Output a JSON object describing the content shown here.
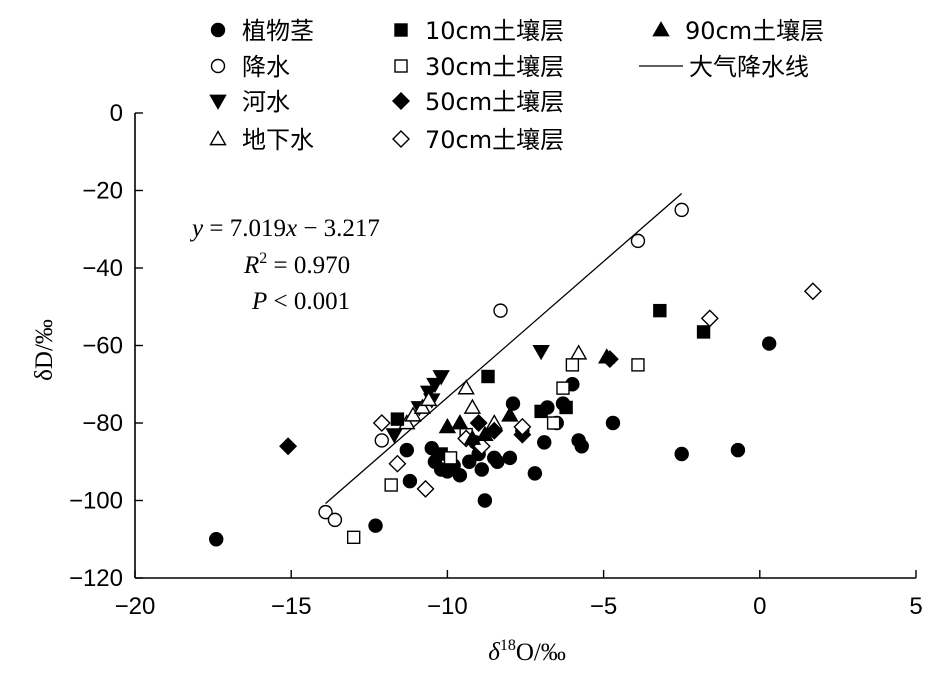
{
  "chart_data": {
    "type": "scatter",
    "xlabel": {
      "pre": "δ",
      "sup": "18",
      "post": "O/‰"
    },
    "ylabel": "δD/‰",
    "xlim": [
      -20,
      5
    ],
    "ylim": [
      -120,
      0
    ],
    "xticks": [
      -20,
      -15,
      -10,
      -5,
      0,
      5
    ],
    "yticks": [
      0,
      -20,
      -40,
      -60,
      -80,
      -100,
      -120
    ],
    "grid": false,
    "legend_position": "top",
    "annotation": {
      "equation": {
        "y": "y",
        "eq": " = 7.019",
        "x": "x",
        "rest": " − 3.217"
      },
      "r2": {
        "r": "R",
        "sup": "2",
        "rest": " = 0.970"
      },
      "p": {
        "p": "P",
        "rest": " < 0.001"
      }
    },
    "line": {
      "name": "大气降水线",
      "slope": 7.019,
      "intercept": -3.217,
      "x_range": [
        -13.9,
        -2.5
      ]
    },
    "series": [
      {
        "name": "植物茎",
        "marker": "circle-filled",
        "points": [
          [
            -17.4,
            -110
          ],
          [
            -12.3,
            -106.5
          ],
          [
            -11.2,
            -95
          ],
          [
            -11.3,
            -87
          ],
          [
            -10.5,
            -86.5
          ],
          [
            -10.4,
            -90
          ],
          [
            -10.2,
            -92
          ],
          [
            -10.0,
            -92.5
          ],
          [
            -9.8,
            -91
          ],
          [
            -9.6,
            -93.5
          ],
          [
            -9.3,
            -90
          ],
          [
            -9.1,
            -85
          ],
          [
            -9.0,
            -88
          ],
          [
            -8.9,
            -92
          ],
          [
            -8.8,
            -100
          ],
          [
            -8.5,
            -89
          ],
          [
            -8.4,
            -90
          ],
          [
            -8.0,
            -89
          ],
          [
            -7.9,
            -75
          ],
          [
            -7.6,
            -82
          ],
          [
            -7.2,
            -93
          ],
          [
            -6.9,
            -85
          ],
          [
            -6.8,
            -76
          ],
          [
            -6.5,
            -80
          ],
          [
            -6.3,
            -75
          ],
          [
            -6.0,
            -70
          ],
          [
            -5.8,
            -84.5
          ],
          [
            -5.7,
            -86
          ],
          [
            -4.7,
            -80
          ],
          [
            -2.5,
            -88
          ],
          [
            -0.7,
            -87
          ],
          [
            0.3,
            -59.5
          ]
        ]
      },
      {
        "name": "降水",
        "marker": "circle-open",
        "points": [
          [
            -13.9,
            -103
          ],
          [
            -13.6,
            -105
          ],
          [
            -12.1,
            -84.5
          ],
          [
            -8.3,
            -51
          ],
          [
            -3.9,
            -33
          ],
          [
            -2.5,
            -25
          ]
        ]
      },
      {
        "name": "河水",
        "marker": "triangle-down-filled",
        "points": [
          [
            -11.7,
            -83
          ],
          [
            -10.9,
            -76
          ],
          [
            -10.6,
            -72
          ],
          [
            -10.5,
            -74
          ],
          [
            -10.4,
            -70
          ],
          [
            -10.2,
            -68
          ],
          [
            -7.0,
            -61.5
          ]
        ]
      },
      {
        "name": "地下水",
        "marker": "triangle-up-open",
        "points": [
          [
            -11.3,
            -80
          ],
          [
            -11.1,
            -78
          ],
          [
            -10.8,
            -76
          ],
          [
            -10.6,
            -74
          ],
          [
            -9.4,
            -71
          ],
          [
            -9.2,
            -76
          ],
          [
            -8.5,
            -80
          ],
          [
            -5.8,
            -62
          ]
        ]
      },
      {
        "name": "10cm土壤层",
        "marker": "square-filled",
        "points": [
          [
            -11.6,
            -79
          ],
          [
            -10.2,
            -88
          ],
          [
            -8.7,
            -68
          ],
          [
            -7.0,
            -77
          ],
          [
            -6.2,
            -76
          ],
          [
            -3.2,
            -51
          ],
          [
            -1.8,
            -56.5
          ]
        ]
      },
      {
        "name": "30cm土壤层",
        "marker": "square-open",
        "points": [
          [
            -13.0,
            -109.5
          ],
          [
            -11.8,
            -96
          ],
          [
            -9.9,
            -89
          ],
          [
            -9.4,
            -83
          ],
          [
            -6.6,
            -80
          ],
          [
            -6.3,
            -71
          ],
          [
            -6.0,
            -65
          ],
          [
            -3.9,
            -65
          ]
        ]
      },
      {
        "name": "50cm土壤层",
        "marker": "diamond-filled",
        "points": [
          [
            -15.1,
            -86
          ],
          [
            -9.0,
            -80
          ],
          [
            -8.5,
            -82
          ],
          [
            -7.6,
            -83
          ],
          [
            -4.8,
            -63.5
          ]
        ]
      },
      {
        "name": "70cm土壤层",
        "marker": "diamond-open",
        "points": [
          [
            -12.1,
            -80
          ],
          [
            -11.6,
            -90.5
          ],
          [
            -10.7,
            -97
          ],
          [
            -9.4,
            -84
          ],
          [
            -8.9,
            -86
          ],
          [
            -7.6,
            -81
          ],
          [
            -1.6,
            -53
          ],
          [
            1.7,
            -46
          ]
        ]
      },
      {
        "name": "90cm土壤层",
        "marker": "triangle-up-filled",
        "points": [
          [
            -10.0,
            -81
          ],
          [
            -9.6,
            -80
          ],
          [
            -9.2,
            -84
          ],
          [
            -8.8,
            -83
          ],
          [
            -8.0,
            -78
          ],
          [
            -4.9,
            -63
          ]
        ]
      }
    ]
  },
  "legend": {
    "columns": [
      [
        {
          "label": "植物茎",
          "marker": "circle-filled"
        },
        {
          "label": "降水",
          "marker": "circle-open"
        },
        {
          "label": "河水",
          "marker": "triangle-down-filled"
        },
        {
          "label": "地下水",
          "marker": "triangle-up-open"
        }
      ],
      [
        {
          "label": "10cm土壤层",
          "marker": "square-filled"
        },
        {
          "label": "30cm土壤层",
          "marker": "square-open"
        },
        {
          "label": "50cm土壤层",
          "marker": "diamond-filled"
        },
        {
          "label": "70cm土壤层",
          "marker": "diamond-open"
        }
      ],
      [
        {
          "label": "90cm土壤层",
          "marker": "triangle-up-filled"
        },
        {
          "label": "大气降水线",
          "marker": "line"
        }
      ]
    ]
  }
}
